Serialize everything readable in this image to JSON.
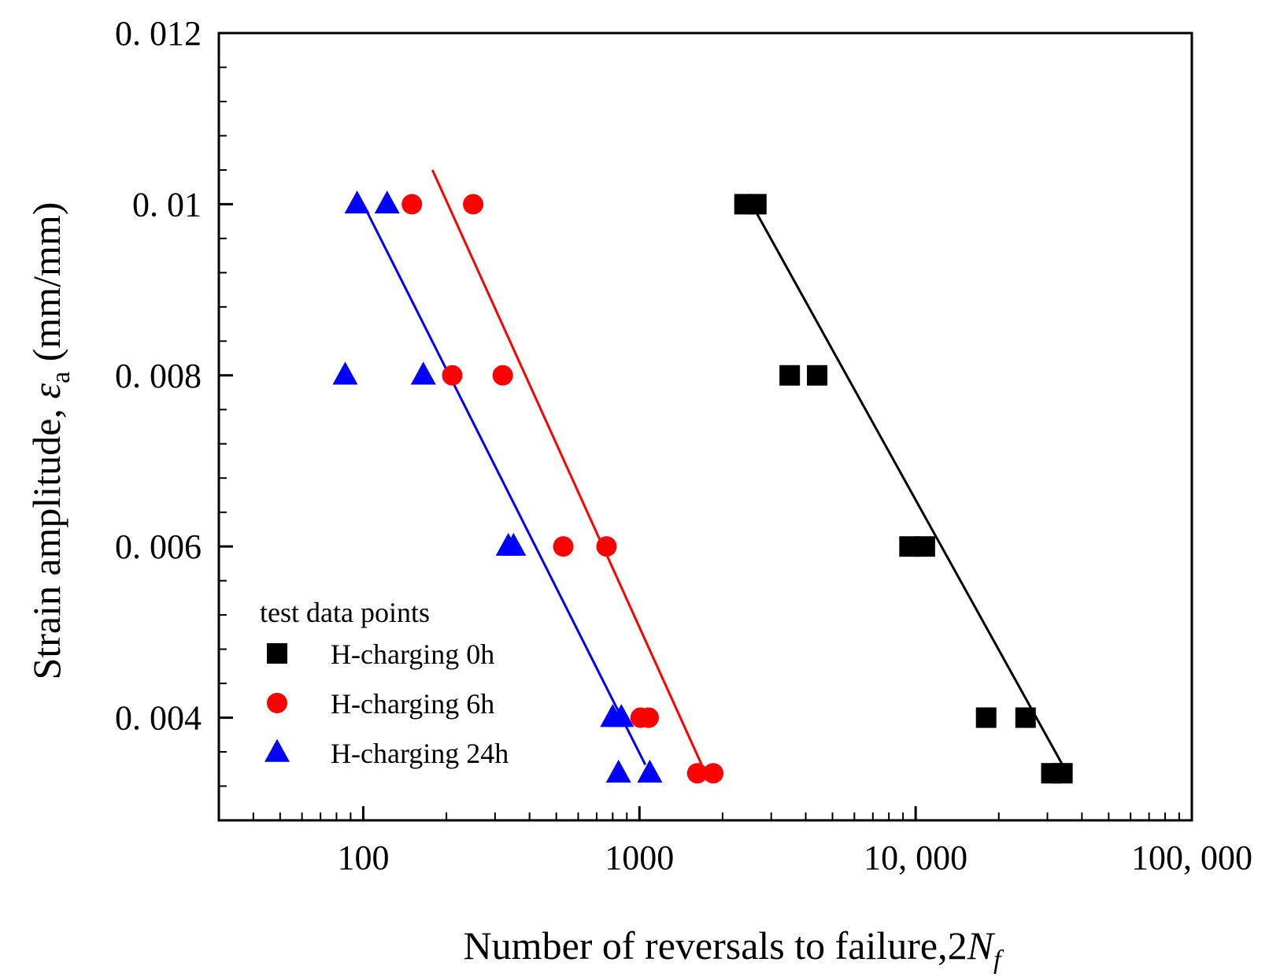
{
  "chart_data": {
    "type": "scatter",
    "title": "",
    "xlabel": {
      "main": "Number of reversals to failure,2",
      "symbol": "N",
      "subscript": "f"
    },
    "ylabel": {
      "main": "Strain amplitude, ",
      "symbol": "ε",
      "subscript": "a",
      "unit": " (mm/mm)"
    },
    "x_scale": "log",
    "xlim": [
      30,
      100000
    ],
    "ylim": [
      0.0028,
      0.012
    ],
    "x_ticks": [
      {
        "value": 100,
        "label": "100"
      },
      {
        "value": 1000,
        "label": "1000"
      },
      {
        "value": 10000,
        "label": "10, 000"
      },
      {
        "value": 100000,
        "label": "100, 000"
      }
    ],
    "y_ticks": [
      {
        "value": 0.004,
        "label": "0. 004"
      },
      {
        "value": 0.006,
        "label": "0. 006"
      },
      {
        "value": 0.008,
        "label": "0. 008"
      },
      {
        "value": 0.01,
        "label": "0. 01"
      },
      {
        "value": 0.012,
        "label": "0. 012"
      }
    ],
    "legend": {
      "title": "test data points",
      "position": "bottom-left"
    },
    "series": [
      {
        "name": "H-charging 0h",
        "marker": "square",
        "color": "#000000",
        "points": [
          {
            "x": 2400,
            "y": 0.01
          },
          {
            "x": 2650,
            "y": 0.01
          },
          {
            "x": 3500,
            "y": 0.008
          },
          {
            "x": 4400,
            "y": 0.008
          },
          {
            "x": 9500,
            "y": 0.006
          },
          {
            "x": 10800,
            "y": 0.006
          },
          {
            "x": 18000,
            "y": 0.004
          },
          {
            "x": 25000,
            "y": 0.004
          },
          {
            "x": 31000,
            "y": 0.00335
          },
          {
            "x": 34000,
            "y": 0.00335
          }
        ],
        "fit_line": [
          {
            "x": 2550,
            "y": 0.01
          },
          {
            "x": 34000,
            "y": 0.00345
          }
        ]
      },
      {
        "name": "H-charging 6h",
        "marker": "circle",
        "color": "#ff0000",
        "points": [
          {
            "x": 150,
            "y": 0.01
          },
          {
            "x": 250,
            "y": 0.01
          },
          {
            "x": 210,
            "y": 0.008
          },
          {
            "x": 320,
            "y": 0.008
          },
          {
            "x": 530,
            "y": 0.006
          },
          {
            "x": 760,
            "y": 0.006
          },
          {
            "x": 1010,
            "y": 0.004
          },
          {
            "x": 1080,
            "y": 0.004
          },
          {
            "x": 1620,
            "y": 0.00335
          },
          {
            "x": 1850,
            "y": 0.00335
          }
        ],
        "fit_line": [
          {
            "x": 178,
            "y": 0.0104
          },
          {
            "x": 1680,
            "y": 0.00345
          }
        ]
      },
      {
        "name": "H-charging 24h",
        "marker": "triangle",
        "color": "#0000ff",
        "points": [
          {
            "x": 95,
            "y": 0.01
          },
          {
            "x": 122,
            "y": 0.01
          },
          {
            "x": 86,
            "y": 0.008
          },
          {
            "x": 165,
            "y": 0.008
          },
          {
            "x": 335,
            "y": 0.006
          },
          {
            "x": 350,
            "y": 0.006
          },
          {
            "x": 800,
            "y": 0.004
          },
          {
            "x": 860,
            "y": 0.004
          },
          {
            "x": 840,
            "y": 0.00335
          },
          {
            "x": 1090,
            "y": 0.00335
          }
        ],
        "fit_line": [
          {
            "x": 100,
            "y": 0.01
          },
          {
            "x": 1050,
            "y": 0.00345
          }
        ]
      }
    ]
  }
}
